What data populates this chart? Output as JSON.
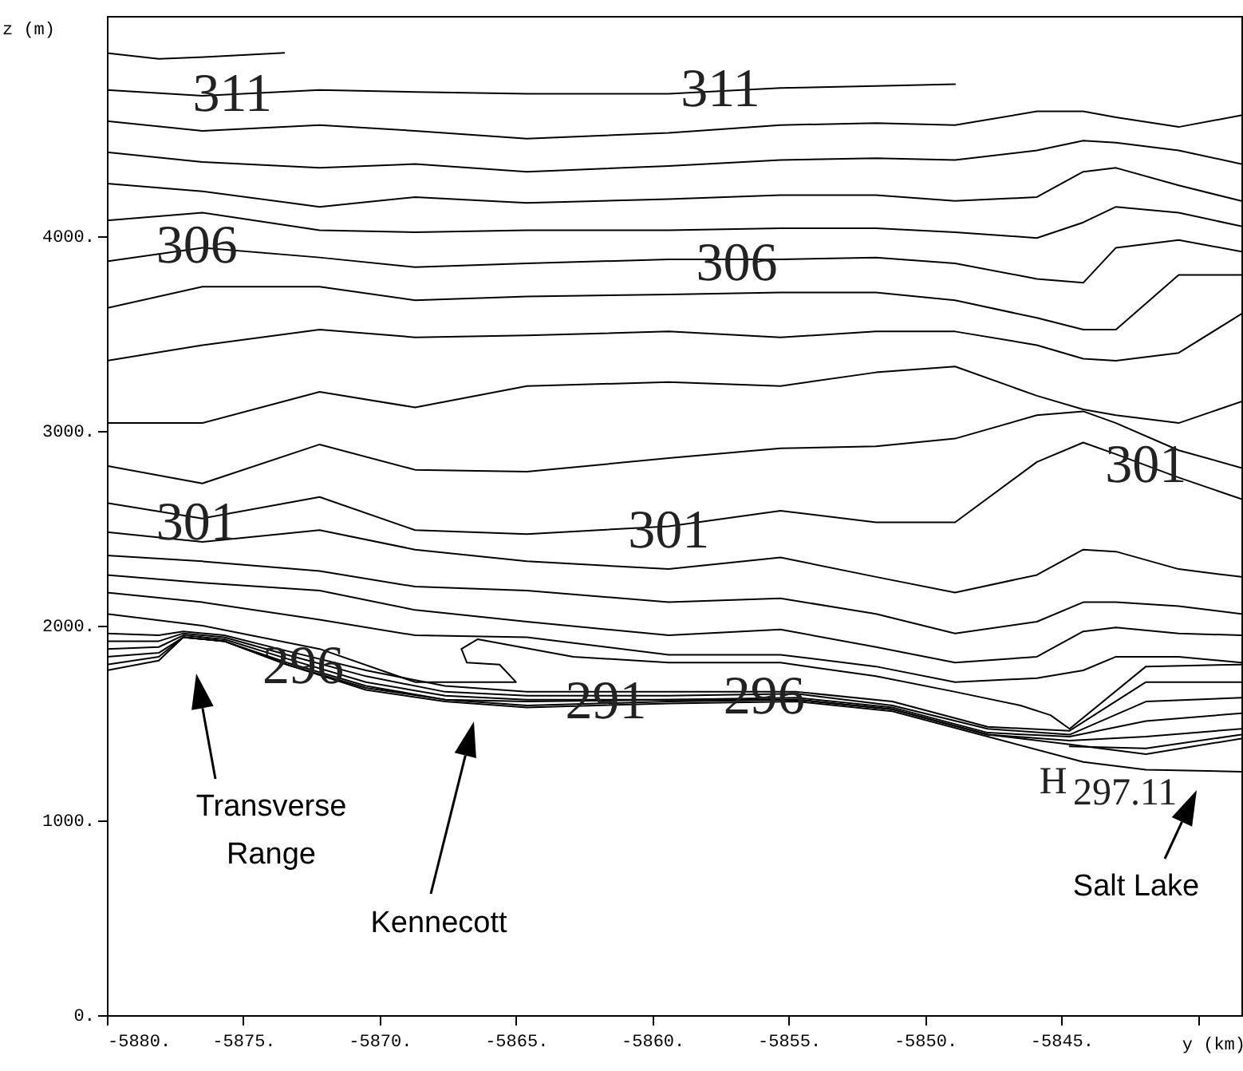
{
  "chart_data": {
    "type": "line",
    "xlabel": "y (km)",
    "ylabel": "z (m)",
    "xlim": [
      -5880,
      -5838.4
    ],
    "ylim": [
      0,
      5130
    ],
    "xticks": [
      {
        "value": -5880,
        "label": "-5880."
      },
      {
        "value": -5875,
        "label": "-5875."
      },
      {
        "value": -5870,
        "label": "-5870."
      },
      {
        "value": -5865,
        "label": "-5865."
      },
      {
        "value": -5860,
        "label": "-5860."
      },
      {
        "value": -5855,
        "label": "-5855."
      },
      {
        "value": -5850,
        "label": "-5850."
      },
      {
        "value": -5845,
        "label": "-5845."
      },
      {
        "value": -5840,
        "label": null
      }
    ],
    "yticks": [
      {
        "value": 0,
        "label": "0."
      },
      {
        "value": 1000,
        "label": "1000."
      },
      {
        "value": 2000,
        "label": "2000."
      },
      {
        "value": 3000,
        "label": "3000."
      },
      {
        "value": 4000,
        "label": "4000."
      }
    ],
    "series": [
      {
        "color": "#000000",
        "x": [
          -5880,
          -5878.1,
          -5876.3,
          -5873.5
        ],
        "values": [
          4940,
          4910,
          4920,
          4940
        ]
      },
      {
        "color": "#000000",
        "x": [
          -5880,
          -5876.5,
          -5872.2,
          -5868.7,
          -5864.6,
          -5859.4,
          -5855.3,
          -5851.8,
          -5848.9
        ],
        "values": [
          4750,
          4720,
          4750,
          4740,
          4730,
          4730,
          4760,
          4770,
          4780
        ]
      },
      {
        "color": "#000000",
        "x": [
          -5880,
          -5876.5,
          -5872.2,
          -5868.7,
          -5864.6,
          -5859.4,
          -5855.3,
          -5851.8,
          -5848.9,
          -5845.9,
          -5844.2,
          -5843.0,
          -5840.7,
          -5838.4
        ],
        "values": [
          4590,
          4540,
          4570,
          4540,
          4500,
          4530,
          4570,
          4580,
          4570,
          4640,
          4640,
          4610,
          4560,
          4620
        ]
      },
      {
        "color": "#000000",
        "x": [
          -5880,
          -5876.5,
          -5872.2,
          -5868.7,
          -5864.6,
          -5859.4,
          -5855.3,
          -5851.8,
          -5848.9,
          -5845.9,
          -5844.2,
          -5843.0,
          -5840.7,
          -5838.4
        ],
        "values": [
          4430,
          4380,
          4350,
          4370,
          4330,
          4360,
          4390,
          4400,
          4390,
          4440,
          4490,
          4480,
          4440,
          4370
        ]
      },
      {
        "color": "#000000",
        "x": [
          -5880,
          -5876.5,
          -5872.2,
          -5868.7,
          -5864.6,
          -5859.4,
          -5855.3,
          -5851.8,
          -5848.9,
          -5845.9,
          -5844.2,
          -5843.0,
          -5840.7,
          -5838.4
        ],
        "values": [
          4270,
          4230,
          4150,
          4200,
          4170,
          4190,
          4210,
          4210,
          4180,
          4200,
          4330,
          4350,
          4260,
          4180
        ]
      },
      {
        "color": "#000000",
        "x": [
          -5880,
          -5876.5,
          -5872.2,
          -5868.7,
          -5864.6,
          -5859.4,
          -5855.3,
          -5851.8,
          -5848.9,
          -5845.9,
          -5844.2,
          -5843.0,
          -5840.7,
          -5838.4
        ],
        "values": [
          4080,
          4120,
          4030,
          4020,
          4030,
          4030,
          4040,
          4040,
          4020,
          3990,
          4070,
          4150,
          4120,
          4050
        ]
      },
      {
        "color": "#000000",
        "x": [
          -5880,
          -5876.5,
          -5872.2,
          -5868.7,
          -5864.6,
          -5859.4,
          -5855.3,
          -5851.8,
          -5848.9,
          -5845.9,
          -5844.2,
          -5843.0,
          -5840.7,
          -5838.4
        ],
        "values": [
          3870,
          3940,
          3890,
          3840,
          3860,
          3880,
          3880,
          3890,
          3860,
          3780,
          3760,
          3940,
          3980,
          3920
        ]
      },
      {
        "color": "#000000",
        "x": [
          -5880,
          -5876.5,
          -5872.2,
          -5868.7,
          -5864.6,
          -5859.4,
          -5855.3,
          -5851.8,
          -5848.9,
          -5845.9,
          -5844.2,
          -5843.0,
          -5840.7,
          -5838.4
        ],
        "values": [
          3630,
          3740,
          3740,
          3670,
          3690,
          3700,
          3710,
          3710,
          3670,
          3580,
          3520,
          3520,
          3800,
          3800
        ]
      },
      {
        "color": "#000000",
        "x": [
          -5880,
          -5876.5,
          -5872.2,
          -5868.7,
          -5864.6,
          -5859.4,
          -5855.3,
          -5851.8,
          -5848.9,
          -5845.9,
          -5844.2,
          -5843.0,
          -5840.7,
          -5838.4
        ],
        "values": [
          3360,
          3440,
          3520,
          3480,
          3490,
          3510,
          3480,
          3510,
          3510,
          3440,
          3370,
          3360,
          3400,
          3600
        ]
      },
      {
        "color": "#000000",
        "x": [
          -5880,
          -5876.5,
          -5872.2,
          -5868.7,
          -5864.6,
          -5859.4,
          -5855.3,
          -5851.8,
          -5848.9,
          -5845.9,
          -5844.2,
          -5843.0,
          -5840.7,
          -5838.4
        ],
        "values": [
          3040,
          3040,
          3200,
          3120,
          3230,
          3250,
          3230,
          3300,
          3330,
          3180,
          3110,
          3080,
          3040,
          3150
        ]
      },
      {
        "color": "#000000",
        "x": [
          -5880,
          -5876.5,
          -5872.2,
          -5868.7,
          -5864.6,
          -5859.4,
          -5855.3,
          -5851.8,
          -5848.9,
          -5845.9,
          -5844.2,
          -5843.0,
          -5840.7,
          -5838.4
        ],
        "values": [
          2820,
          2730,
          2930,
          2800,
          2790,
          2860,
          2910,
          2920,
          2960,
          3080,
          3100,
          3040,
          2900,
          2810
        ]
      },
      {
        "color": "#000000",
        "x": [
          -5880,
          -5876.5,
          -5872.2,
          -5868.7,
          -5864.6,
          -5859.4,
          -5855.3,
          -5851.8,
          -5848.9,
          -5845.9,
          -5844.2,
          -5843.0,
          -5840.7,
          -5838.4
        ],
        "values": [
          2630,
          2550,
          2660,
          2490,
          2470,
          2510,
          2590,
          2530,
          2530,
          2840,
          2940,
          2880,
          2760,
          2650
        ]
      },
      {
        "color": "#000000",
        "x": [
          -5880,
          -5876.5,
          -5872.2,
          -5868.7,
          -5864.6,
          -5859.4,
          -5855.3,
          -5851.8,
          -5848.9,
          -5845.9,
          -5844.2,
          -5843.0,
          -5840.7,
          -5838.4
        ],
        "values": [
          2480,
          2430,
          2490,
          2390,
          2330,
          2290,
          2350,
          2250,
          2170,
          2260,
          2390,
          2380,
          2290,
          2250
        ]
      },
      {
        "color": "#000000",
        "x": [
          -5880,
          -5876.5,
          -5872.2,
          -5868.7,
          -5864.6,
          -5859.4,
          -5855.3,
          -5851.8,
          -5848.9,
          -5845.9,
          -5844.2,
          -5843.0,
          -5840.7,
          -5838.4
        ],
        "values": [
          2360,
          2330,
          2280,
          2200,
          2180,
          2120,
          2140,
          2060,
          1960,
          2020,
          2120,
          2120,
          2100,
          2060
        ]
      },
      {
        "color": "#000000",
        "x": [
          -5880,
          -5876.5,
          -5872.2,
          -5868.7,
          -5864.6,
          -5859.4,
          -5855.3,
          -5851.8,
          -5848.9,
          -5845.9,
          -5844.2,
          -5843.0,
          -5840.7,
          -5838.4
        ],
        "values": [
          2260,
          2220,
          2180,
          2080,
          2020,
          1950,
          1980,
          1890,
          1810,
          1840,
          1970,
          1990,
          1960,
          1950
        ]
      },
      {
        "color": "#000000",
        "x": [
          -5880,
          -5876.5,
          -5872.2,
          -5868.7,
          -5864.6,
          -5859.4,
          -5855.3,
          -5851.8,
          -5848.9,
          -5845.9,
          -5844.2,
          -5843.0,
          -5840.7,
          -5838.4
        ],
        "values": [
          2170,
          2120,
          2030,
          1950,
          1940,
          1850,
          1850,
          1790,
          1710,
          1730,
          1770,
          1840,
          1840,
          1810
        ]
      },
      {
        "color": "#000000",
        "x": [
          -5880,
          -5876.5,
          -5872.2,
          -5868.7,
          -5865.0,
          -5865.6,
          -5866.8,
          -5867.0,
          -5866.4,
          -5862.9,
          -5859.4,
          -5855.3,
          -5851.8,
          -5848.9,
          -5846.5,
          -5845.4,
          -5844.7,
          -5841.9,
          -5838.4
        ],
        "values": [
          2060,
          2000,
          1880,
          1710,
          1710,
          1800,
          1810,
          1880,
          1930,
          1840,
          1810,
          1810,
          1740,
          1660,
          1590,
          1540,
          1470,
          1790,
          1800
        ]
      },
      {
        "color": "#000000",
        "x": [
          -5880,
          -5878.1,
          -5877.2,
          -5875.7,
          -5873.4,
          -5870.5,
          -5867.6,
          -5864.6,
          -5859.4,
          -5854.7,
          -5851.2,
          -5847.7,
          -5844.7,
          -5841.9,
          -5838.4
        ],
        "values": [
          1960,
          1950,
          1970,
          1950,
          1870,
          1770,
          1690,
          1660,
          1660,
          1660,
          1610,
          1480,
          1460,
          1710,
          1710
        ]
      },
      {
        "color": "#000000",
        "x": [
          -5880,
          -5878.1,
          -5877.2,
          -5875.7,
          -5873.4,
          -5870.5,
          -5867.6,
          -5864.6,
          -5859.4,
          -5854.7,
          -5851.2,
          -5847.7,
          -5844.7,
          -5841.9,
          -5838.4
        ],
        "values": [
          1920,
          1920,
          1960,
          1940,
          1850,
          1740,
          1660,
          1640,
          1640,
          1650,
          1590,
          1470,
          1440,
          1610,
          1630
        ]
      },
      {
        "color": "#000000",
        "x": [
          -5880,
          -5878.1,
          -5877.2,
          -5875.7,
          -5873.4,
          -5870.5,
          -5867.6,
          -5864.6,
          -5859.4,
          -5854.7,
          -5851.2,
          -5847.7,
          -5844.7,
          -5841.9,
          -5838.4
        ],
        "values": [
          1880,
          1890,
          1950,
          1930,
          1830,
          1710,
          1640,
          1620,
          1620,
          1630,
          1580,
          1450,
          1430,
          1510,
          1550
        ]
      },
      {
        "color": "#000000",
        "x": [
          -5880,
          -5878.1,
          -5877.2,
          -5875.7,
          -5873.4,
          -5870.5,
          -5867.6,
          -5864.6,
          -5859.4,
          -5854.7,
          -5851.2,
          -5847.7,
          -5844.7,
          -5841.9,
          -5838.4
        ],
        "values": [
          1840,
          1860,
          1940,
          1920,
          1810,
          1690,
          1620,
          1610,
          1620,
          1620,
          1570,
          1440,
          1410,
          1430,
          1470
        ]
      },
      {
        "color": "#000000",
        "x": [
          -5880,
          -5878.1,
          -5877.2,
          -5875.7,
          -5873.4,
          -5870.5,
          -5867.6,
          -5864.6,
          -5859.4,
          -5854.7,
          -5851.2,
          -5847.7,
          -5844.7,
          -5841.9,
          -5838.4
        ],
        "values": [
          1800,
          1840,
          1940,
          1920,
          1800,
          1680,
          1620,
          1590,
          1610,
          1620,
          1570,
          1440,
          1390,
          1340,
          1420
        ]
      },
      {
        "color": "#000000",
        "x": [
          -5880,
          -5878.1,
          -5877.2,
          -5875.7,
          -5873.4,
          -5870.5,
          -5867.6,
          -5864.6,
          -5859.4,
          -5854.7,
          -5851.2,
          -5847.7,
          -5844.2,
          -5841.9,
          -5838.4
        ],
        "values": [
          1770,
          1820,
          1940,
          1920,
          1800,
          1670,
          1610,
          1580,
          1600,
          1610,
          1560,
          1430,
          1300,
          1260,
          1250
        ]
      },
      {
        "color": "#000000",
        "x": [
          -5844.7,
          -5841.9,
          -5838.4
        ],
        "values": [
          1380,
          1370,
          1440
        ]
      }
    ],
    "annotations": [
      {
        "text": "311",
        "x": -5875.4,
        "y": 4723
      },
      {
        "text": "311",
        "x": -5857.5,
        "y": 4748
      },
      {
        "text": "306",
        "x": -5876.7,
        "y": 3944
      },
      {
        "text": "306",
        "x": -5856.9,
        "y": 3854
      },
      {
        "text": "301",
        "x": -5876.7,
        "y": 2526
      },
      {
        "text": "301",
        "x": -5859.4,
        "y": 2485
      },
      {
        "text": "301",
        "x": -5841.9,
        "y": 2820
      },
      {
        "text": "296",
        "x": -5872.8,
        "y": 1788
      },
      {
        "text": "296",
        "x": -5855.9,
        "y": 1632
      },
      {
        "text": "291",
        "x": -5861.7,
        "y": 1607
      },
      "297.11",
      "H",
      "Transverse\nRange",
      "Kennecott",
      "Salt Lake"
    ]
  }
}
